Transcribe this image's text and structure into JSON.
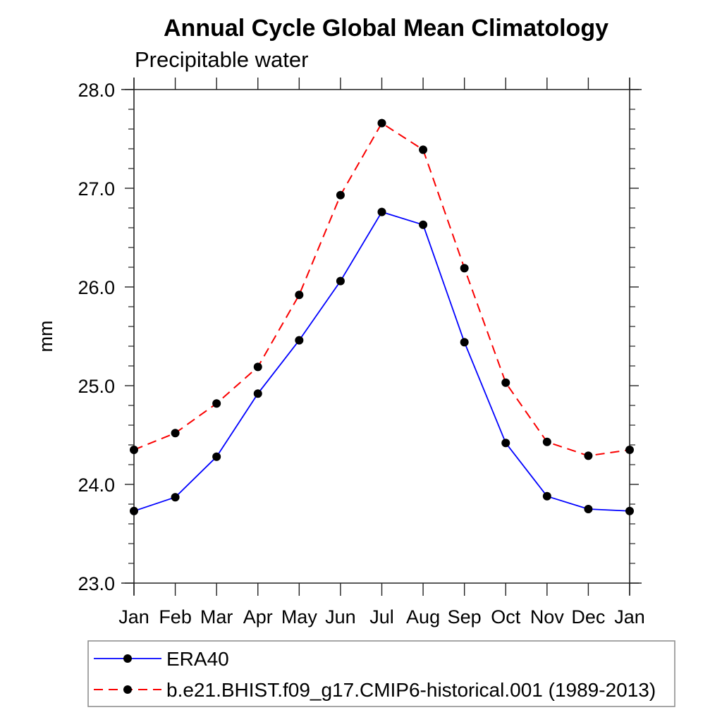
{
  "page": {
    "background": "#ffffff",
    "frame_color": "#222222",
    "text_color": "#000000",
    "legend_border_color": "#888888"
  },
  "chart_data": {
    "type": "line",
    "title": "Annual Cycle Global Mean Climatology",
    "subtitle": "Precipitable water",
    "xlabel": "",
    "ylabel": "mm",
    "categories": [
      "Jan",
      "Feb",
      "Mar",
      "Apr",
      "May",
      "Jun",
      "Jul",
      "Aug",
      "Sep",
      "Oct",
      "Nov",
      "Dec",
      "Jan"
    ],
    "ylim": [
      23.0,
      28.0
    ],
    "ytick_major_labels": [
      "23.0",
      "24.0",
      "25.0",
      "26.0",
      "27.0",
      "28.0"
    ],
    "ytick_major_values": [
      23.0,
      24.0,
      25.0,
      26.0,
      27.0,
      28.0
    ],
    "ytick_minor_step": 0.2,
    "grid": false,
    "legend_position": "bottom-left",
    "marker": "circle",
    "marker_color": "#000000",
    "series": [
      {
        "name": "ERA40",
        "color": "#0000ff",
        "line_style": "solid",
        "values": [
          23.73,
          23.87,
          24.28,
          24.92,
          25.46,
          26.06,
          26.76,
          26.63,
          25.44,
          24.42,
          23.88,
          23.75,
          23.73
        ]
      },
      {
        "name": "b.e21.BHIST.f09_g17.CMIP6-historical.001 (1989-2013)",
        "color": "#fa0000",
        "line_style": "dashed",
        "values": [
          24.35,
          24.52,
          24.82,
          25.19,
          25.92,
          26.93,
          27.66,
          27.39,
          26.19,
          25.03,
          24.43,
          24.29,
          24.35
        ]
      }
    ]
  }
}
